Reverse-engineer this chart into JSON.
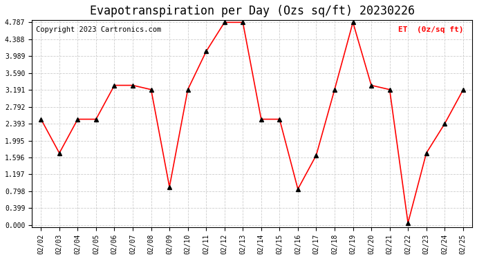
{
  "title": "Evapotranspiration per Day (Ozs sq/ft) 20230226",
  "copyright": "Copyright 2023 Cartronics.com",
  "legend_label": "ET  (0z/sq ft)",
  "dates": [
    "02/02",
    "02/03",
    "02/04",
    "02/05",
    "02/06",
    "02/07",
    "02/08",
    "02/09",
    "02/10",
    "02/11",
    "02/12",
    "02/13",
    "02/14",
    "02/15",
    "02/16",
    "02/17",
    "02/18",
    "02/19",
    "02/20",
    "02/21",
    "02/22",
    "02/23",
    "02/24",
    "02/25"
  ],
  "values": [
    2.5,
    1.7,
    2.5,
    2.5,
    3.3,
    3.3,
    3.2,
    0.9,
    3.2,
    4.1,
    4.787,
    4.787,
    2.5,
    2.5,
    0.85,
    1.65,
    3.2,
    4.787,
    3.3,
    3.2,
    0.05,
    1.7,
    2.393,
    3.191
  ],
  "ylim": [
    0.0,
    4.787
  ],
  "yticks": [
    0.0,
    0.399,
    0.798,
    1.197,
    1.596,
    1.995,
    2.393,
    2.792,
    3.191,
    3.59,
    3.989,
    4.388,
    4.787
  ],
  "line_color": "red",
  "marker_color": "black",
  "grid_color": "#cccccc",
  "bg_color": "white",
  "title_fontsize": 12,
  "copyright_fontsize": 7.5,
  "legend_color": "red"
}
